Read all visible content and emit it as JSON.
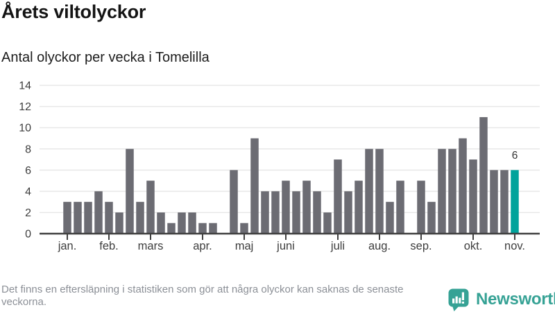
{
  "header": {
    "title": "Årets viltolyckor",
    "subtitle": "Antal olyckor per vecka i Tomelilla"
  },
  "chart_data": {
    "type": "bar",
    "title": "Årets viltolyckor",
    "subtitle": "Antal olyckor per vecka i Tomelilla",
    "x_unit": "vecka",
    "x": [
      1,
      2,
      3,
      4,
      5,
      6,
      7,
      8,
      9,
      10,
      11,
      12,
      13,
      14,
      15,
      16,
      17,
      18,
      19,
      20,
      21,
      22,
      23,
      24,
      25,
      26,
      27,
      28,
      29,
      30,
      31,
      32,
      33,
      34,
      35,
      36,
      37,
      38,
      39,
      40,
      41,
      42,
      43,
      44
    ],
    "values": [
      3,
      3,
      3,
      4,
      3,
      2,
      8,
      3,
      5,
      2,
      1,
      2,
      2,
      1,
      1,
      0,
      6,
      1,
      9,
      4,
      4,
      5,
      4,
      5,
      4,
      2,
      7,
      4,
      5,
      8,
      8,
      3,
      5,
      0,
      5,
      3,
      8,
      8,
      9,
      7,
      11,
      6,
      6,
      6
    ],
    "highlight_index": 43,
    "annotation": {
      "text": "6",
      "value": 6
    },
    "x_tick_labels": [
      "jan.",
      "feb.",
      "mars",
      "apr.",
      "maj",
      "juni",
      "juli",
      "aug.",
      "sep.",
      "okt.",
      "nov."
    ],
    "x_tick_slots": [
      1,
      5,
      9,
      14,
      18,
      22,
      27,
      31,
      35,
      40,
      44
    ],
    "y_ticks": [
      0,
      2,
      4,
      6,
      8,
      10,
      12,
      14
    ],
    "ylim": [
      0,
      14
    ],
    "grid": "horizontal",
    "legend": "none",
    "colors": {
      "bar": "#6c6c73",
      "highlight": "#00a39b",
      "grid": "#e8e8e8",
      "axis": "#3f3f3f",
      "tick_text": "#3d3d3d",
      "annotation_text": "#333333"
    }
  },
  "footer": {
    "disclaimer": "Det finns en eftersläpning i statistiken som gör att några olyckor kan saknas de senaste veckorna."
  },
  "logo": {
    "name": "Newsworthy",
    "color": "#36a295"
  }
}
